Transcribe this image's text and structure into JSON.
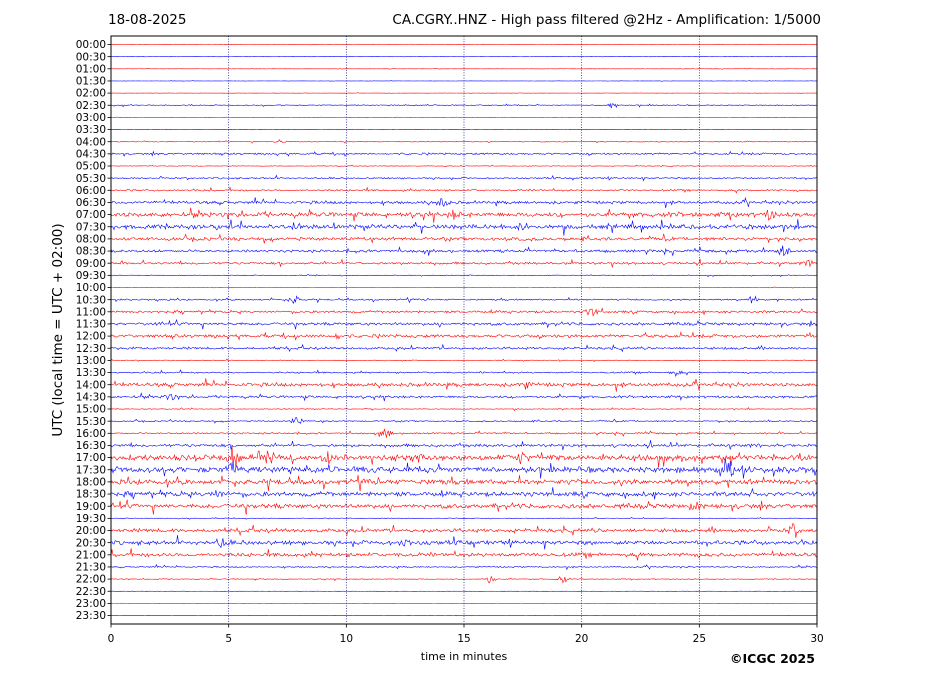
{
  "header": {
    "date": "18-08-2025",
    "title": "CA.CGRY..HNZ - High pass filtered @2Hz - Amplification: 1/5000"
  },
  "footer": {
    "copyright": "©ICGC 2025"
  },
  "chart_data": {
    "type": "line",
    "title": "CA.CGRY..HNZ - High pass filtered @2Hz - Amplification: 1/5000",
    "xlabel": "time in minutes",
    "ylabel": "UTC (local time = UTC + 02:00)",
    "xlim": [
      0,
      30
    ],
    "x_ticks": [
      0,
      5,
      10,
      15,
      20,
      25,
      30
    ],
    "grid": "vertical dotted lines at every 5 minutes",
    "trace_colors": [
      "#ff0000",
      "#0000ff"
    ],
    "row_labels": [
      "00:00",
      "00:30",
      "01:00",
      "01:30",
      "02:00",
      "02:30",
      "03:00",
      "03:30",
      "04:00",
      "04:30",
      "05:00",
      "05:30",
      "06:00",
      "06:30",
      "07:00",
      "07:30",
      "08:00",
      "08:30",
      "09:00",
      "09:30",
      "10:00",
      "10:30",
      "11:00",
      "11:30",
      "12:00",
      "12:30",
      "13:00",
      "13:30",
      "14:00",
      "14:30",
      "15:00",
      "15:30",
      "16:00",
      "16:30",
      "17:00",
      "17:30",
      "18:00",
      "18:30",
      "19:00",
      "19:30",
      "20:00",
      "20:30",
      "21:00",
      "21:30",
      "22:00",
      "22:30",
      "23:00",
      "23:30"
    ],
    "activity": [
      0.02,
      0.02,
      0.02,
      0.02,
      0.02,
      0.08,
      0.02,
      0.02,
      0.06,
      0.15,
      0.05,
      0.12,
      0.14,
      0.22,
      0.35,
      0.35,
      0.25,
      0.2,
      0.18,
      0.06,
      0.03,
      0.12,
      0.18,
      0.22,
      0.25,
      0.18,
      0.06,
      0.12,
      0.28,
      0.18,
      0.06,
      0.1,
      0.12,
      0.22,
      0.45,
      0.45,
      0.4,
      0.35,
      0.35,
      0.06,
      0.28,
      0.32,
      0.3,
      0.1,
      0.06,
      0.01,
      0.01,
      0.01
    ],
    "events": [
      {
        "row": "02:30",
        "minute": 21.3,
        "amplitude": 0.7
      },
      {
        "row": "04:00",
        "minute": 7.2,
        "amplitude": 0.4
      },
      {
        "row": "06:30",
        "minute": 14.1,
        "amplitude": 1.2
      },
      {
        "row": "07:00",
        "minute": 14.6,
        "amplitude": 0.8
      },
      {
        "row": "07:00",
        "minute": 28.0,
        "amplitude": 0.8
      },
      {
        "row": "07:30",
        "minute": 7.9,
        "amplitude": 0.9
      },
      {
        "row": "07:30",
        "minute": 17.5,
        "amplitude": 0.6
      },
      {
        "row": "08:30",
        "minute": 28.6,
        "amplitude": 1.3
      },
      {
        "row": "09:00",
        "minute": 29.7,
        "amplitude": 0.7
      },
      {
        "row": "10:30",
        "minute": 7.8,
        "amplitude": 0.8
      },
      {
        "row": "10:30",
        "minute": 27.3,
        "amplitude": 0.8
      },
      {
        "row": "11:00",
        "minute": 20.4,
        "amplitude": 1.0
      },
      {
        "row": "12:00",
        "minute": 9.6,
        "amplitude": 0.5
      },
      {
        "row": "13:30",
        "minute": 24.0,
        "amplitude": 0.6
      },
      {
        "row": "14:00",
        "minute": 17.6,
        "amplitude": 0.7
      },
      {
        "row": "14:30",
        "minute": 2.5,
        "amplitude": 0.7
      },
      {
        "row": "15:30",
        "minute": 7.9,
        "amplitude": 0.9
      },
      {
        "row": "16:00",
        "minute": 11.7,
        "amplitude": 1.0
      },
      {
        "row": "17:00",
        "minute": 5.2,
        "amplitude": 2.5
      },
      {
        "row": "17:00",
        "minute": 6.8,
        "amplitude": 1.0
      },
      {
        "row": "17:00",
        "minute": 9.2,
        "amplitude": 1.1
      },
      {
        "row": "17:00",
        "minute": 17.5,
        "amplitude": 1.2
      },
      {
        "row": "17:30",
        "minute": 5.2,
        "amplitude": 1.5
      },
      {
        "row": "17:30",
        "minute": 26.3,
        "amplitude": 1.3
      },
      {
        "row": "18:30",
        "minute": 4.5,
        "amplitude": 0.6
      },
      {
        "row": "19:00",
        "minute": 24.8,
        "amplitude": 0.8
      },
      {
        "row": "20:00",
        "minute": 29.0,
        "amplitude": 1.4
      },
      {
        "row": "20:30",
        "minute": 4.7,
        "amplitude": 0.8
      },
      {
        "row": "20:30",
        "minute": 12.5,
        "amplitude": 0.7
      },
      {
        "row": "22:00",
        "minute": 16.1,
        "amplitude": 0.8
      },
      {
        "row": "22:00",
        "minute": 19.2,
        "amplitude": 0.8
      }
    ]
  }
}
